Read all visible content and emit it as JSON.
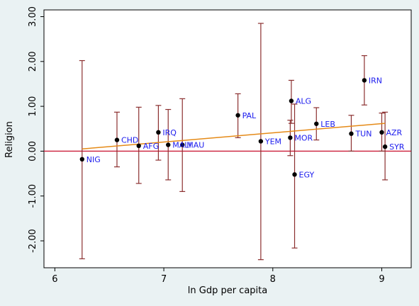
{
  "chart_data": {
    "type": "scatter",
    "xlabel": "ln Gdp per capita",
    "ylabel": "Religion",
    "xlim": [
      5.9,
      9.27
    ],
    "ylim": [
      -2.6,
      3.15
    ],
    "x_ticks": [
      {
        "value": 6,
        "label": "6"
      },
      {
        "value": 7,
        "label": "7"
      },
      {
        "value": 8,
        "label": "8"
      },
      {
        "value": 9,
        "label": "9"
      }
    ],
    "y_ticks": [
      {
        "value": -2,
        "label": "-2.00"
      },
      {
        "value": -1,
        "label": "-1.00"
      },
      {
        "value": 0,
        "label": "0.00"
      },
      {
        "value": 1,
        "label": "1.00"
      },
      {
        "value": 2,
        "label": "2.00"
      },
      {
        "value": 3,
        "label": "3.00"
      }
    ],
    "zero_line": 0,
    "fit_line": {
      "x": [
        6.25,
        9.03
      ],
      "y": [
        0.05,
        0.62
      ]
    },
    "points": [
      {
        "label": "NIG",
        "x": 6.25,
        "y": -0.18,
        "lo": -2.4,
        "hi": 2.02
      },
      {
        "label": "CHD",
        "x": 6.57,
        "y": 0.25,
        "lo": -0.35,
        "hi": 0.87
      },
      {
        "label": "AFG",
        "x": 6.77,
        "y": 0.12,
        "lo": -0.72,
        "hi": 0.98
      },
      {
        "label": "IRQ",
        "x": 6.95,
        "y": 0.42,
        "lo": -0.2,
        "hi": 1.02
      },
      {
        "label": "MALI",
        "x": 7.04,
        "y": 0.14,
        "lo": -0.64,
        "hi": 0.93
      },
      {
        "label": "MAU",
        "x": 7.17,
        "y": 0.14,
        "lo": -0.9,
        "hi": 1.17
      },
      {
        "label": "PAL",
        "x": 7.68,
        "y": 0.8,
        "lo": 0.3,
        "hi": 1.28
      },
      {
        "label": "YEM",
        "x": 7.89,
        "y": 0.22,
        "lo": -2.42,
        "hi": 2.85
      },
      {
        "label": "ALG",
        "x": 8.17,
        "y": 1.12,
        "lo": 0.62,
        "hi": 1.58
      },
      {
        "label": "MOR",
        "x": 8.16,
        "y": 0.3,
        "lo": -0.1,
        "hi": 0.69
      },
      {
        "label": "EGY",
        "x": 8.2,
        "y": -0.52,
        "lo": -2.16,
        "hi": 1.05
      },
      {
        "label": "LEB",
        "x": 8.4,
        "y": 0.61,
        "lo": 0.25,
        "hi": 0.97
      },
      {
        "label": "IRN",
        "x": 8.84,
        "y": 1.58,
        "lo": 1.03,
        "hi": 2.13
      },
      {
        "label": "TUN",
        "x": 8.72,
        "y": 0.39,
        "lo": 0.0,
        "hi": 0.8
      },
      {
        "label": "AZR",
        "x": 9.0,
        "y": 0.42,
        "lo": 0.0,
        "hi": 0.85
      },
      {
        "label": "SYR",
        "x": 9.03,
        "y": 0.1,
        "lo": -0.64,
        "hi": 0.87
      }
    ],
    "grid": false,
    "legend": "none",
    "colors": {
      "background": "#eaf2f3",
      "plot_bg": "#ffffff",
      "ci": "#8b2f2f",
      "fit": "#e58a17",
      "zero": "#c8102e",
      "marker": "#000000",
      "label": "#1a1aee"
    }
  }
}
